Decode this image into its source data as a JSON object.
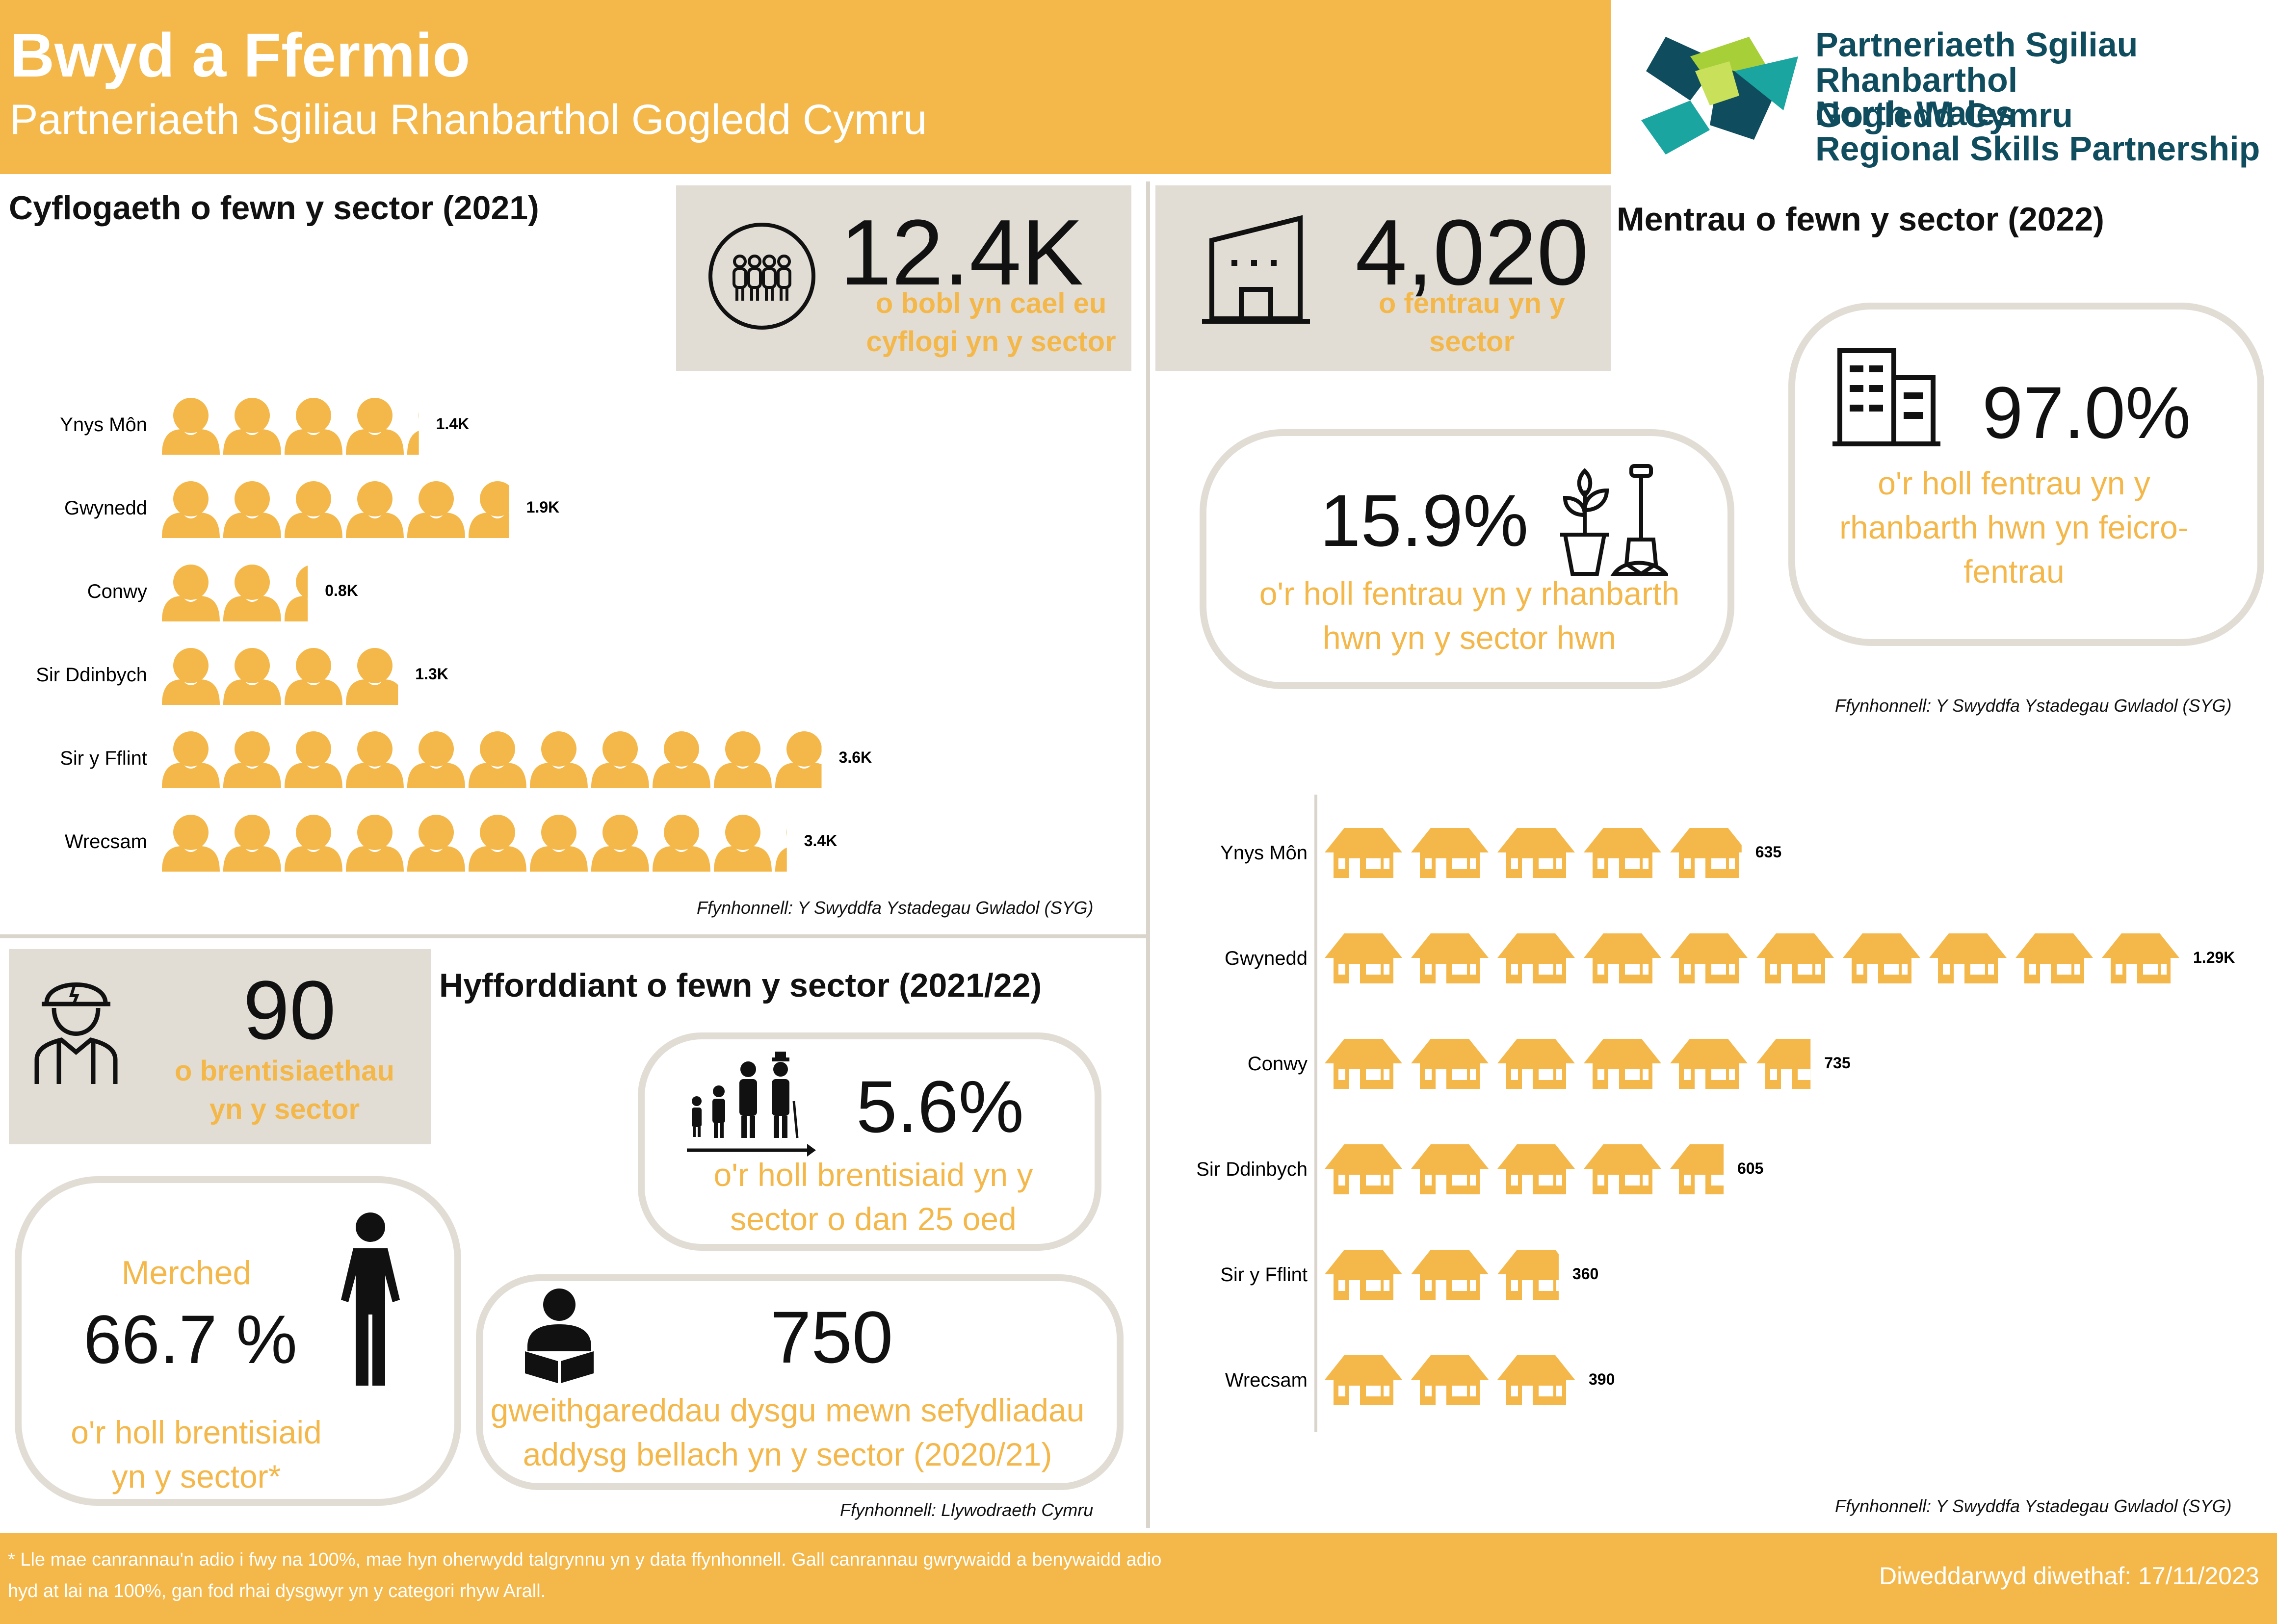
{
  "header": {
    "title": "Bwyd a Ffermio",
    "subtitle": "Partneriaeth Sgiliau Rhanbarthol Gogledd Cymru",
    "logo_cy_line1": "Partneriaeth Sgiliau Rhanbarthol",
    "logo_cy_line2": "Gogledd Cymru",
    "logo_en_line1": "North Wales",
    "logo_en_line2": "Regional Skills Partnership"
  },
  "employment": {
    "title": "Cyflogaeth o fewn y sector (2021)",
    "total_value": "12.4K",
    "total_caption": "o bobl yn cael eu cyflogi yn y sector",
    "rows": [
      {
        "label": "Ynys Môn",
        "value": 1.4,
        "value_label": "1.4K"
      },
      {
        "label": "Gwynedd",
        "value": 1.9,
        "value_label": "1.9K"
      },
      {
        "label": "Conwy",
        "value": 0.8,
        "value_label": "0.8K"
      },
      {
        "label": "Sir Ddinbych",
        "value": 1.3,
        "value_label": "1.3K"
      },
      {
        "label": "Sir y Fflint",
        "value": 3.6,
        "value_label": "3.6K"
      },
      {
        "label": "Wrecsam",
        "value": 3.4,
        "value_label": "3.4K"
      }
    ],
    "source": "Ffynhonnell: Y Swyddfa Ystadegau Gwladol (SYG)"
  },
  "enterprises": {
    "title": "Mentrau o fewn y sector (2022)",
    "total_value": "4,020",
    "total_caption": "o fentrau yn y sector",
    "share_value": "15.9%",
    "share_caption": "o'r holl fentrau yn y rhanbarth hwn yn y sector hwn",
    "micro_value": "97.0%",
    "micro_caption": "o'r holl fentrau yn y rhanbarth hwn yn feicro-fentrau",
    "source_top": "Ffynhonnell: Y Swyddfa Ystadegau Gwladol (SYG)",
    "rows": [
      {
        "label": "Ynys Môn",
        "value": 635,
        "value_label": "635"
      },
      {
        "label": "Gwynedd",
        "value": 1290,
        "value_label": "1.29K"
      },
      {
        "label": "Conwy",
        "value": 735,
        "value_label": "735"
      },
      {
        "label": "Sir Ddinbych",
        "value": 605,
        "value_label": "605"
      },
      {
        "label": "Sir y Fflint",
        "value": 360,
        "value_label": "360"
      },
      {
        "label": "Wrecsam",
        "value": 390,
        "value_label": "390"
      }
    ],
    "source_bottom": "Ffynhonnell: Y Swyddfa Ystadegau Gwladol (SYG)"
  },
  "training": {
    "title": "Hyfforddiant o fewn y sector (2021/22)",
    "apprenticeships_value": "90",
    "apprenticeships_caption": "o brentisiaethau yn y sector",
    "female_label": "Merched",
    "female_value": "66.7 %",
    "female_caption": "o'r holl brentisiaid yn y sector*",
    "under25_value": "5.6%",
    "under25_caption": "o'r holl brentisiaid yn y sector o dan 25 oed",
    "fe_value": "750",
    "fe_caption": "gweithgareddau dysgu mewn sefydliadau addysg bellach yn y sector (2020/21)",
    "source": "Ffynhonnell: Llywodraeth Cymru"
  },
  "footer": {
    "note": "* Lle mae canrannau'n adio i fwy na 100%, mae hyn oherwydd talgrynnu yn y data ffynhonnell. Gall canrannau gwrywaidd a benywaidd adio hyd at lai na 100%, gan fod rhai dysgwyr yn y categori rhyw Arall.",
    "updated": "Diweddarwyd diwethaf: 17/11/2023"
  },
  "colors": {
    "accent": "#f4b74a",
    "panel_grey": "#e1ddd4",
    "logo_teal": "#0f4d5e",
    "logo_green": "#a6cf38"
  },
  "icons": {
    "people_group": "people-group-icon",
    "building": "building-icon",
    "office": "office-building-icon",
    "plant": "plant-spade-icon",
    "worker": "worker-icon",
    "family": "age-group-icon",
    "reader": "reading-person-icon",
    "female": "female-icon",
    "person": "person-icon",
    "house": "house-icon"
  }
}
